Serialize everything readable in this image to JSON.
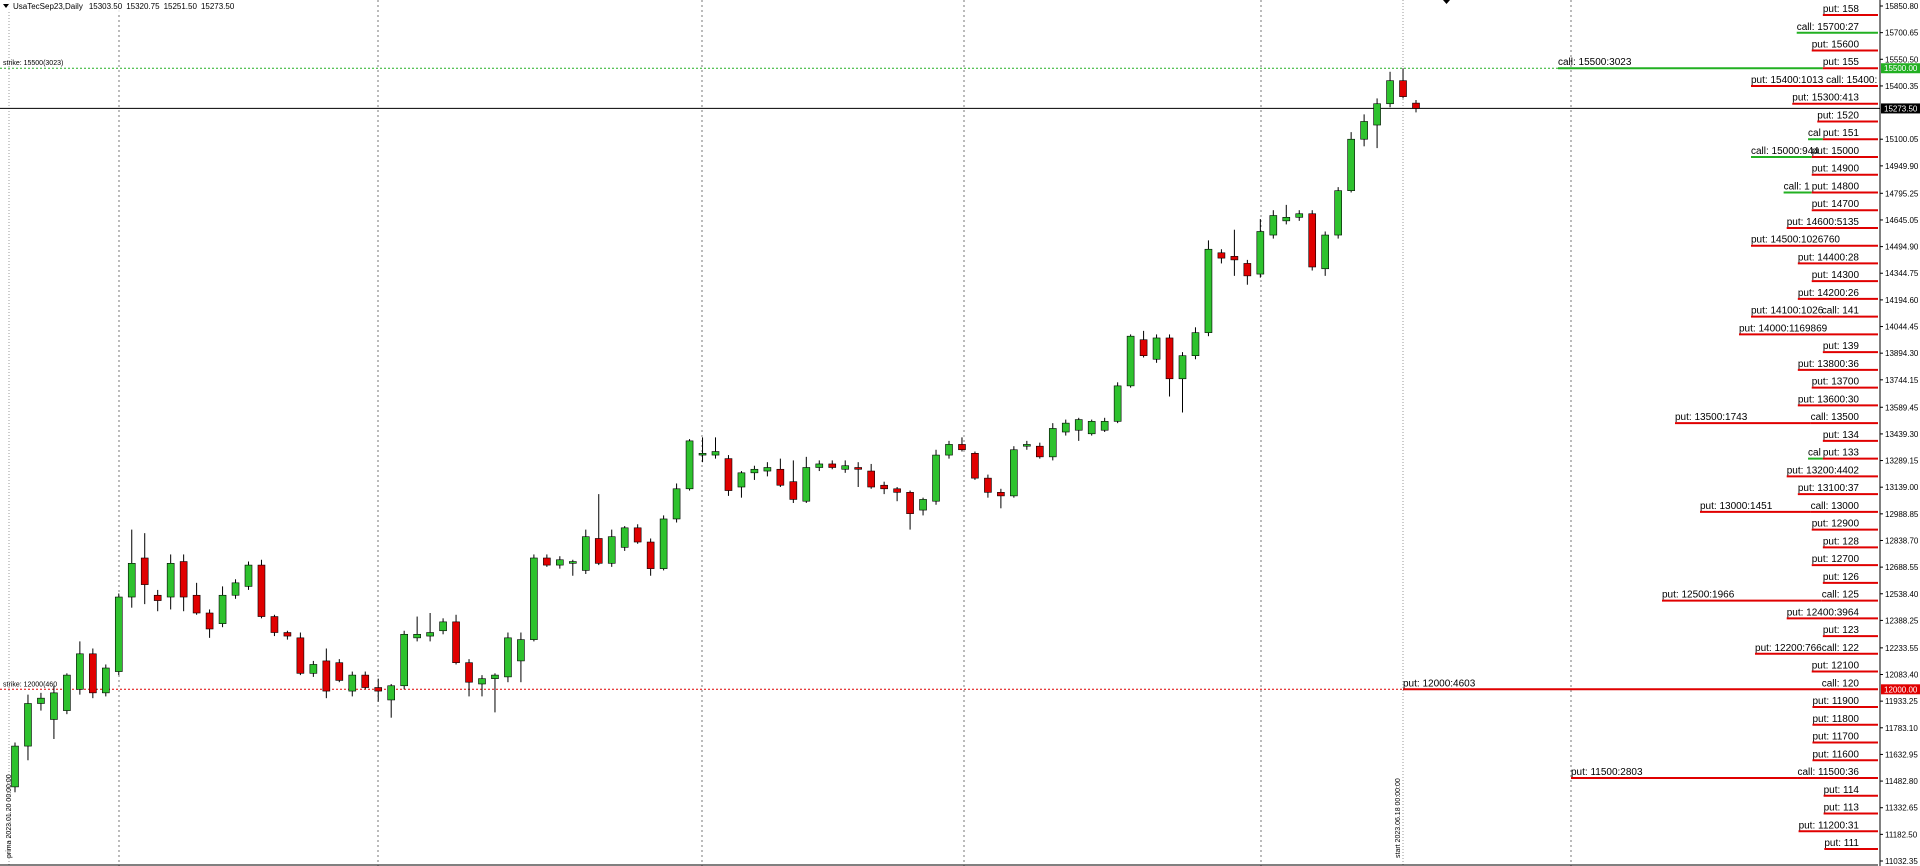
{
  "chart_data": {
    "type": "candlestick",
    "title": "UsaTecSep23,Daily",
    "header_ohlc": [
      {
        "value": 15303.5,
        "label": "15303.50"
      },
      {
        "value": 15320.75,
        "label": "15320.75"
      },
      {
        "value": 15251.5,
        "label": "15251.50"
      },
      {
        "value": 15273.5,
        "label": "15273.50"
      }
    ],
    "up_color": "#2ec22e",
    "down_color": "#e00000",
    "open": [
      11450,
      11680,
      11920,
      11830,
      11880,
      12000,
      12200,
      11980,
      12100,
      12520,
      12740,
      12530,
      12520,
      12720,
      12530,
      12430,
      12370,
      12530,
      12580,
      12700,
      12410,
      12320,
      12290,
      12090,
      12160,
      12150,
      11990,
      12080,
      12010,
      11940,
      12020,
      12290,
      12300,
      12330,
      12380,
      12150,
      12030,
      12060,
      12070,
      12160,
      12280,
      12740,
      12700,
      12710,
      12670,
      12850,
      12710,
      12800,
      12910,
      12830,
      12680,
      12960,
      13130,
      13320,
      13320,
      13300,
      13140,
      13220,
      13230,
      13240,
      13170,
      13060,
      13250,
      13270,
      13240,
      13250,
      13230,
      13150,
      13130,
      13110,
      13010,
      13060,
      13320,
      13380,
      13330,
      13190,
      13110,
      13090,
      13370,
      13370,
      13310,
      13450,
      13460,
      13440,
      13460,
      13510,
      13710,
      13970,
      13860,
      13980,
      13750,
      13880,
      14010,
      14460,
      14440,
      14400,
      14340,
      14560,
      14640,
      14660,
      14680,
      14370,
      14560,
      14810,
      15100,
      15180,
      15300,
      15430,
      15303.5
    ],
    "high": [
      11700,
      11970,
      11980,
      12020,
      12090,
      12270,
      12230,
      12140,
      12540,
      12900,
      12880,
      12560,
      12760,
      12760,
      12600,
      12450,
      12580,
      12620,
      12720,
      12730,
      12420,
      12330,
      12320,
      12160,
      12230,
      12170,
      12100,
      12100,
      12060,
      12030,
      12330,
      12410,
      12430,
      12400,
      12420,
      12170,
      12080,
      12090,
      12320,
      12320,
      12760,
      12760,
      12750,
      12730,
      12900,
      13100,
      12900,
      12920,
      12930,
      12850,
      12980,
      13160,
      13410,
      13420,
      13420,
      13320,
      13230,
      13260,
      13280,
      13300,
      13290,
      13310,
      13290,
      13290,
      13290,
      13280,
      13270,
      13170,
      13140,
      13120,
      13080,
      13350,
      13400,
      13420,
      13340,
      13210,
      13130,
      13370,
      13400,
      13390,
      13500,
      13520,
      13530,
      13520,
      13530,
      13730,
      14000,
      14020,
      14000,
      14000,
      13900,
      14040,
      14530,
      14480,
      14590,
      14420,
      14650,
      14700,
      14730,
      14700,
      14700,
      14580,
      14830,
      15140,
      15240,
      15330,
      15480,
      15500,
      15320.75
    ],
    "low": [
      11420,
      11600,
      11880,
      11720,
      11860,
      11970,
      11950,
      11960,
      12080,
      12460,
      12480,
      12440,
      12450,
      12440,
      12420,
      12290,
      12350,
      12510,
      12560,
      12400,
      12300,
      12280,
      12080,
      12070,
      11950,
      12040,
      11960,
      12000,
      11930,
      11840,
      12000,
      12270,
      12270,
      12310,
      12140,
      11960,
      11960,
      11870,
      12040,
      12040,
      12270,
      12690,
      12680,
      12640,
      12650,
      12700,
      12690,
      12780,
      12820,
      12640,
      12670,
      12940,
      13120,
      13280,
      13300,
      13090,
      13080,
      13180,
      13200,
      13140,
      13050,
      13050,
      13230,
      13240,
      13220,
      13140,
      13130,
      13100,
      13060,
      12900,
      12980,
      13040,
      13300,
      13340,
      13180,
      13080,
      13020,
      13080,
      13350,
      13300,
      13290,
      13430,
      13400,
      13430,
      13450,
      13500,
      13700,
      13870,
      13840,
      13650,
      13560,
      13860,
      13990,
      14400,
      14330,
      14280,
      14320,
      14540,
      14620,
      14640,
      14360,
      14330,
      14540,
      14800,
      15060,
      15050,
      15280,
      15330,
      15251.5
    ],
    "close": [
      11680,
      11920,
      11950,
      11980,
      12080,
      12200,
      11980,
      12120,
      12520,
      12710,
      12590,
      12500,
      12710,
      12520,
      12430,
      12340,
      12530,
      12600,
      12700,
      12410,
      12320,
      12300,
      12090,
      12140,
      11990,
      12050,
      12080,
      12010,
      11990,
      12020,
      12310,
      12310,
      12320,
      12380,
      12150,
      12040,
      12060,
      12080,
      12290,
      12280,
      12740,
      12700,
      12730,
      12720,
      12860,
      12710,
      12860,
      12910,
      12830,
      12680,
      12960,
      13130,
      13400,
      13330,
      13340,
      13120,
      13220,
      13240,
      13250,
      13150,
      13070,
      13250,
      13270,
      13250,
      13260,
      13240,
      13140,
      13130,
      13110,
      12990,
      13070,
      13320,
      13380,
      13350,
      13190,
      13110,
      13090,
      13350,
      13380,
      13310,
      13470,
      13500,
      13520,
      13510,
      13510,
      13710,
      13990,
      13880,
      13980,
      13750,
      13880,
      14010,
      14480,
      14430,
      14420,
      14330,
      14580,
      14670,
      14660,
      14680,
      14380,
      14560,
      14810,
      15100,
      15200,
      15300,
      15430,
      15340,
      15273.5
    ],
    "ylim": [
      11004.2,
      15884.6
    ],
    "yticks": [
      {
        "value": 15850.8,
        "label": "15850.80"
      },
      15700.65,
      {
        "value": 15550.5,
        "label": "15550.50"
      },
      15400.35,
      15100.05,
      {
        "value": 14949.9,
        "label": "14949.90"
      },
      14795.25,
      14645.05,
      {
        "value": 14494.9,
        "label": "14494.90"
      },
      14344.75,
      {
        "value": 14194.6,
        "label": "14194.60"
      },
      14044.45,
      {
        "value": 13894.3,
        "label": "13894.30"
      },
      13744.15,
      13589.45,
      {
        "value": 13439.3,
        "label": "13439.30"
      },
      13289.15,
      {
        "value": 13139,
        "label": "13139.00"
      },
      12988.85,
      {
        "value": 12838.7,
        "label": "12838.70"
      },
      12688.55,
      {
        "value": 12538.4,
        "label": "12538.40"
      },
      12388.25,
      12233.55,
      {
        "value": 12083.4,
        "label": "12083.40"
      },
      11933.25,
      {
        "value": 11783.1,
        "label": "11783.10"
      },
      11632.95,
      {
        "value": 11482.8,
        "label": "11482.80"
      },
      11332.65,
      {
        "value": 11182.5,
        "label": "11182.50"
      },
      11032.35
    ],
    "price_markers": [
      {
        "value": 15500,
        "label": "15500.00",
        "color": "#22b022",
        "line": false
      },
      {
        "value": 15273.5,
        "label": "15273.50",
        "color": "#000000",
        "line": true
      },
      {
        "value": 12000,
        "label": "12000.00",
        "color": "#e00000",
        "line": false
      }
    ],
    "strikes": [
      {
        "value": 15500,
        "label": "strike: 15500(3023)",
        "color": "#22b022"
      },
      {
        "value": 12000,
        "label": "strike: 12000(460",
        "color": "#e00000"
      }
    ],
    "events": [
      "prima 2023.01.20 00:00:00",
      "start 2023.06.18 00:00:00"
    ],
    "levels": [
      {
        "value": 15800,
        "labels": [
          {
            "text": "put: 158",
            "color": "#e00000"
          }
        ]
      },
      {
        "value": 15700,
        "labels": [
          {
            "text": "call: 15700:27",
            "color": "#22b022"
          }
        ]
      },
      {
        "value": 15600,
        "labels": [
          {
            "text": "put: 15600",
            "color": "#e00000"
          }
        ]
      },
      {
        "value": 15500,
        "labels": [
          {
            "text": "call: 15500:3023",
            "color": "#22b022"
          },
          {
            "text": "put: 155",
            "color": "#e00000"
          }
        ]
      },
      {
        "value": 15400,
        "labels": [
          {
            "text": "put: 15400:1013 call: 15400:",
            "color": "#e00000"
          }
        ]
      },
      {
        "value": 15300,
        "labels": [
          {
            "text": "put: 15300:413",
            "color": "#e00000"
          }
        ]
      },
      {
        "value": 15200,
        "labels": [
          {
            "text": "put: 1520",
            "color": "#e00000"
          }
        ]
      },
      {
        "value": 15100,
        "labels": [
          {
            "text": "cal",
            "color": "#22b022"
          },
          {
            "text": "put: 151",
            "color": "#e00000"
          }
        ]
      },
      {
        "value": 15000,
        "labels": [
          {
            "text": "call: 15000:944",
            "color": "#22b022"
          },
          {
            "text": "put: 15000",
            "color": "#e00000"
          }
        ]
      },
      {
        "value": 14900,
        "labels": [
          {
            "text": "put: 14900",
            "color": "#e00000"
          }
        ]
      },
      {
        "value": 14800,
        "labels": [
          {
            "text": "call: 1",
            "color": "#22b022"
          },
          {
            "text": "put: 14800",
            "color": "#e00000"
          }
        ]
      },
      {
        "value": 14700,
        "labels": [
          {
            "text": "put: 14700",
            "color": "#e00000"
          }
        ]
      },
      {
        "value": 14600,
        "labels": [
          {
            "text": "put: 14600:5135",
            "color": "#e00000"
          }
        ]
      },
      {
        "value": 14500,
        "labels": [
          {
            "text": "put: 14500:1026760",
            "color": "#e00000"
          }
        ]
      },
      {
        "value": 14400,
        "labels": [
          {
            "text": "put: 14400:28",
            "color": "#e00000"
          }
        ]
      },
      {
        "value": 14300,
        "labels": [
          {
            "text": "put: 14300",
            "color": "#e00000"
          }
        ]
      },
      {
        "value": 14200,
        "labels": [
          {
            "text": "put: 14200:26",
            "color": "#e00000"
          }
        ]
      },
      {
        "value": 14100,
        "labels": [
          {
            "text": "put: 14100:1026",
            "color": "#e00000"
          },
          {
            "text": "call: 141",
            "color": "#e00000"
          }
        ]
      },
      {
        "value": 14000,
        "labels": [
          {
            "text": "put: 14000:1169869",
            "color": "#e00000"
          }
        ]
      },
      {
        "value": 13900,
        "labels": [
          {
            "text": "put: 139",
            "color": "#e00000"
          }
        ]
      },
      {
        "value": 13800,
        "labels": [
          {
            "text": "put: 13800:36",
            "color": "#e00000"
          }
        ]
      },
      {
        "value": 13700,
        "labels": [
          {
            "text": "put: 13700",
            "color": "#e00000"
          }
        ]
      },
      {
        "value": 13600,
        "labels": [
          {
            "text": "put: 13600:30",
            "color": "#e00000"
          }
        ]
      },
      {
        "value": 13500,
        "labels": [
          {
            "text": "put: 13500:1743",
            "color": "#e00000"
          },
          {
            "text": "call: 13500",
            "color": "#e00000"
          }
        ]
      },
      {
        "value": 13400,
        "labels": [
          {
            "text": "put: 134",
            "color": "#e00000"
          }
        ]
      },
      {
        "value": 13300,
        "labels": [
          {
            "text": "cal",
            "color": "#22b022"
          },
          {
            "text": "put: 133",
            "color": "#e00000"
          }
        ]
      },
      {
        "value": 13200,
        "labels": [
          {
            "text": "put: 13200:4402",
            "color": "#e00000"
          }
        ]
      },
      {
        "value": 13100,
        "labels": [
          {
            "text": "put: 13100:37",
            "color": "#e00000"
          }
        ]
      },
      {
        "value": 13000,
        "labels": [
          {
            "text": "put: 13000:1451",
            "color": "#e00000"
          },
          {
            "text": "call: 13000",
            "color": "#e00000"
          }
        ]
      },
      {
        "value": 12900,
        "labels": [
          {
            "text": "put: 12900",
            "color": "#e00000"
          }
        ]
      },
      {
        "value": 12800,
        "labels": [
          {
            "text": "put: 128",
            "color": "#e00000"
          }
        ]
      },
      {
        "value": 12700,
        "labels": [
          {
            "text": "put: 12700",
            "color": "#e00000"
          }
        ]
      },
      {
        "value": 12600,
        "labels": [
          {
            "text": "put: 126",
            "color": "#e00000"
          }
        ]
      },
      {
        "value": 12500,
        "labels": [
          {
            "text": "put: 12500:1966",
            "color": "#e00000"
          },
          {
            "text": "call: 125",
            "color": "#e00000"
          }
        ]
      },
      {
        "value": 12400,
        "labels": [
          {
            "text": "put: 12400:3964",
            "color": "#e00000"
          }
        ]
      },
      {
        "value": 12300,
        "labels": [
          {
            "text": "put: 123",
            "color": "#e00000"
          }
        ]
      },
      {
        "value": 12200,
        "labels": [
          {
            "text": "put: 12200:766call: 122",
            "color": "#e00000"
          }
        ]
      },
      {
        "value": 12100,
        "labels": [
          {
            "text": "put: 12100",
            "color": "#e00000"
          }
        ]
      },
      {
        "value": 12000,
        "labels": [
          {
            "text": "put: 12000:4603",
            "color": "#e00000"
          },
          {
            "text": "call: 120",
            "color": "#e00000"
          }
        ]
      },
      {
        "value": 11900,
        "labels": [
          {
            "text": "put: 11900",
            "color": "#e00000"
          }
        ]
      },
      {
        "value": 11800,
        "labels": [
          {
            "text": "put: 11800",
            "color": "#e00000"
          }
        ]
      },
      {
        "value": 11700,
        "labels": [
          {
            "text": "put: 11700",
            "color": "#e00000"
          }
        ]
      },
      {
        "value": 11600,
        "labels": [
          {
            "text": "put: 11600",
            "color": "#e00000"
          }
        ]
      },
      {
        "value": 11500,
        "labels": [
          {
            "text": "put: 11500:2803",
            "color": "#e00000"
          },
          {
            "text": "call: 11500:36",
            "color": "#e00000"
          }
        ]
      },
      {
        "value": 11400,
        "labels": [
          {
            "text": "put: 114",
            "color": "#e00000"
          }
        ]
      },
      {
        "value": 11300,
        "labels": [
          {
            "text": "put: 113",
            "color": "#e00000"
          }
        ]
      },
      {
        "value": 11200,
        "labels": [
          {
            "text": "put: 11200:31",
            "color": "#e00000"
          }
        ]
      },
      {
        "value": 11100,
        "labels": [
          {
            "text": "put: 111",
            "color": "#e00000"
          }
        ]
      }
    ]
  }
}
